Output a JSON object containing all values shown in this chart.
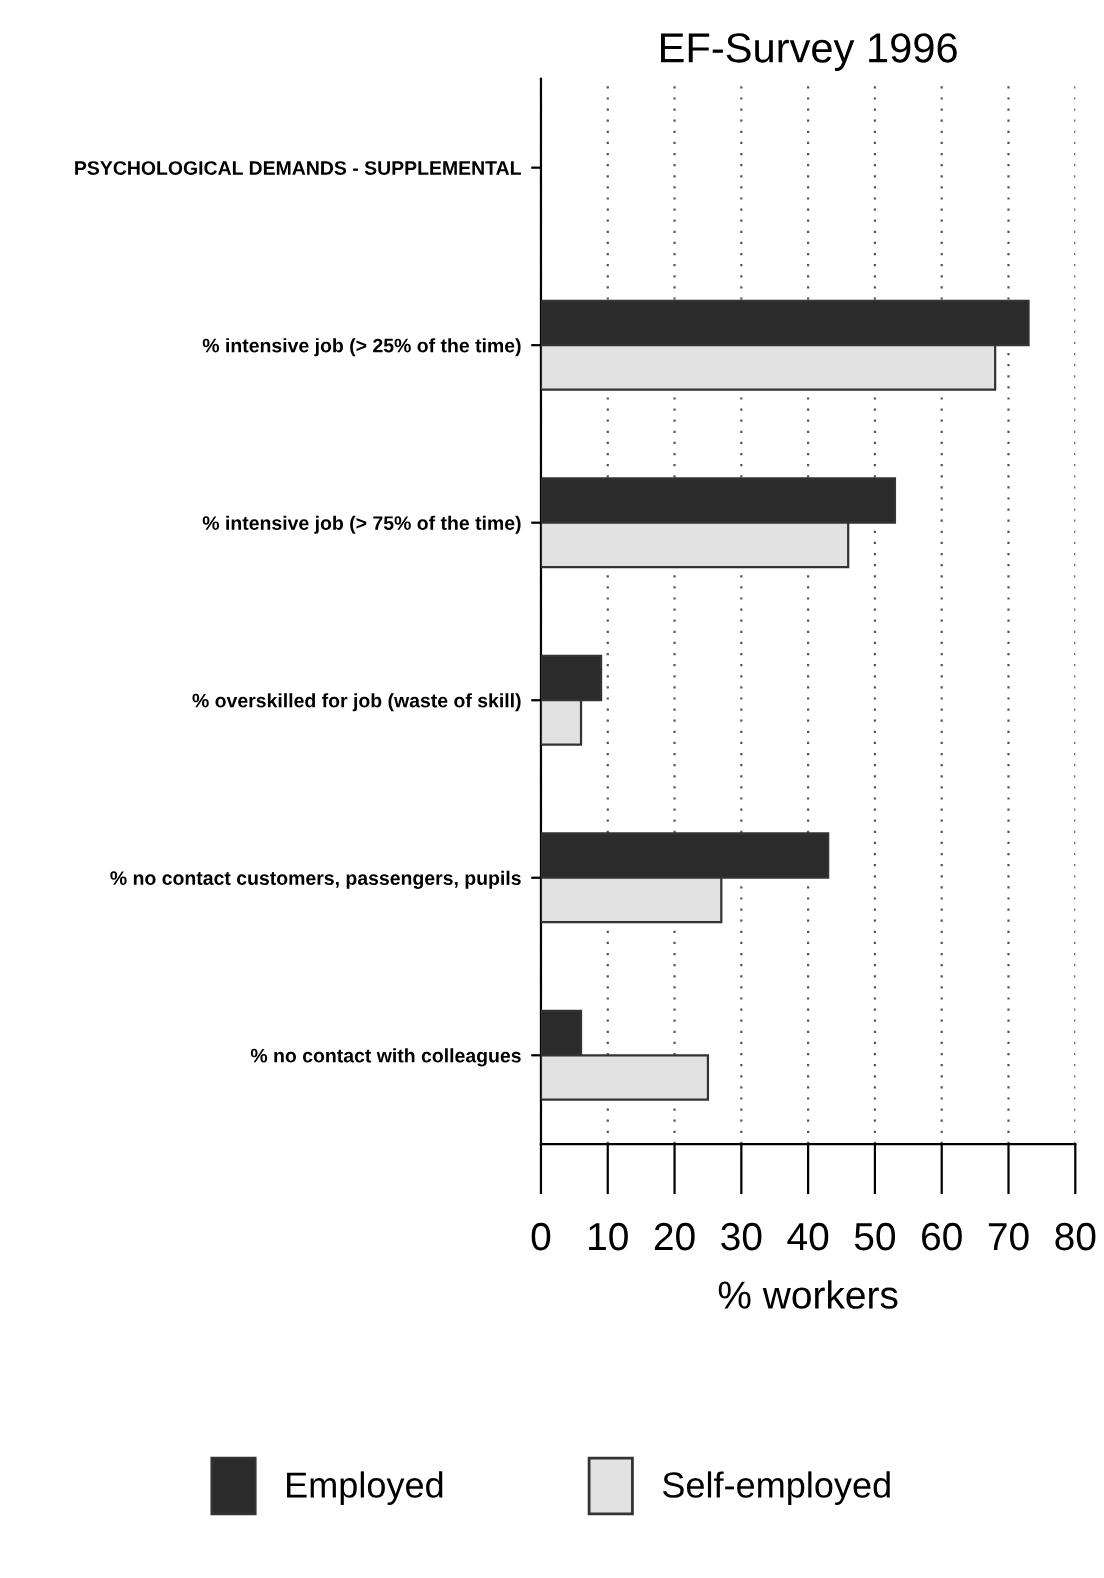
{
  "chart_data": {
    "type": "bar",
    "orientation": "horizontal",
    "title": "EF-Survey 1996",
    "xlabel": "% workers",
    "categories": [
      "PSYCHOLOGICAL DEMANDS - SUPPLEMENTAL",
      "% intensive job (> 25% of the time)",
      "% intensive job (> 75% of the time)",
      "% overskilled for job (waste of skill)",
      "% no contact customers, passengers, pupils",
      "% no contact with colleagues"
    ],
    "series": [
      {
        "name": "Employed",
        "color": "#2b2b2b",
        "values": [
          null,
          73,
          53,
          9,
          43,
          6
        ]
      },
      {
        "name": "Self-employed",
        "color": "#e2e2e2",
        "values": [
          null,
          68,
          46,
          6,
          27,
          25
        ]
      }
    ],
    "xlim": [
      0,
      80
    ],
    "xticks": [
      0,
      10,
      20,
      30,
      40,
      50,
      60,
      70,
      80
    ],
    "grid": "x",
    "legend": "bottom"
  }
}
